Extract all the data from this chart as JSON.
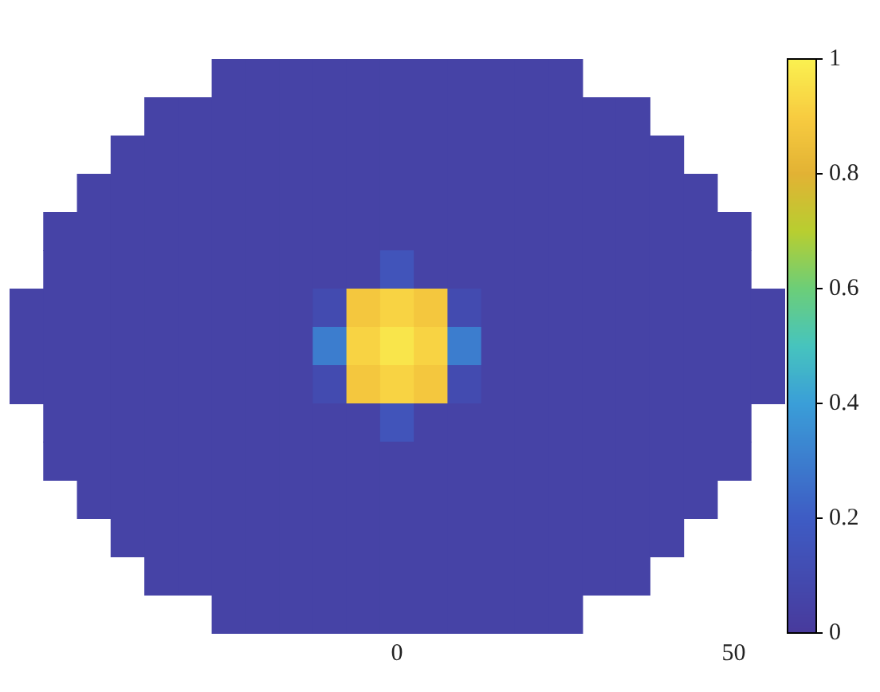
{
  "chart_data": {
    "type": "heatmap",
    "tick_labels": "x",
    "grid": false,
    "categories": [
      null,
      null,
      null,
      null,
      null,
      null,
      null,
      null,
      null,
      null,
      null,
      "0",
      null,
      null,
      null,
      null,
      null,
      null,
      null,
      null,
      null,
      "50",
      null
    ],
    "y_categories": [
      null,
      null,
      null,
      null,
      null,
      null,
      null,
      null,
      null,
      null,
      null,
      null,
      null,
      null,
      null
    ],
    "cells": [
      [
        null,
        null,
        null,
        null,
        null,
        null,
        0.05,
        0.05,
        0.05,
        0.05,
        0.05,
        0.05,
        0.05,
        0.05,
        0.05,
        0.05,
        0.05,
        null,
        null,
        null,
        null,
        null,
        null
      ],
      [
        null,
        null,
        null,
        null,
        0.05,
        0.05,
        0.05,
        0.05,
        0.05,
        0.05,
        0.05,
        0.05,
        0.05,
        0.05,
        0.05,
        0.05,
        0.05,
        0.05,
        0.05,
        null,
        null,
        null,
        null
      ],
      [
        null,
        null,
        null,
        0.05,
        0.05,
        0.05,
        0.05,
        0.05,
        0.05,
        0.05,
        0.05,
        0.05,
        0.05,
        0.05,
        0.05,
        0.05,
        0.05,
        0.05,
        0.05,
        0.05,
        null,
        null,
        null
      ],
      [
        null,
        null,
        0.05,
        0.05,
        0.05,
        0.05,
        0.05,
        0.05,
        0.05,
        0.05,
        0.05,
        0.05,
        0.05,
        0.05,
        0.05,
        0.05,
        0.05,
        0.05,
        0.05,
        0.05,
        0.05,
        null,
        null
      ],
      [
        null,
        0.05,
        0.05,
        0.05,
        0.05,
        0.05,
        0.05,
        0.05,
        0.05,
        0.05,
        0.05,
        0.05,
        0.05,
        0.05,
        0.05,
        0.05,
        0.05,
        0.05,
        0.05,
        0.05,
        0.05,
        0.05,
        null
      ],
      [
        null,
        0.05,
        0.05,
        0.05,
        0.05,
        0.05,
        0.05,
        0.05,
        0.05,
        0.05,
        0.05,
        0.15,
        0.05,
        0.05,
        0.05,
        0.05,
        0.05,
        0.05,
        0.05,
        0.05,
        0.05,
        0.05,
        null
      ],
      [
        0.05,
        0.05,
        0.05,
        0.05,
        0.05,
        0.05,
        0.05,
        0.05,
        0.05,
        0.1,
        0.88,
        0.92,
        0.88,
        0.1,
        0.05,
        0.05,
        0.05,
        0.05,
        0.05,
        0.05,
        0.05,
        0.05,
        0.05
      ],
      [
        0.05,
        0.05,
        0.05,
        0.05,
        0.05,
        0.05,
        0.05,
        0.05,
        0.05,
        0.3,
        0.92,
        0.97,
        0.92,
        0.3,
        0.05,
        0.05,
        0.05,
        0.05,
        0.05,
        0.05,
        0.05,
        0.05,
        0.05
      ],
      [
        0.05,
        0.05,
        0.05,
        0.05,
        0.05,
        0.05,
        0.05,
        0.05,
        0.05,
        0.1,
        0.88,
        0.92,
        0.88,
        0.1,
        0.05,
        0.05,
        0.05,
        0.05,
        0.05,
        0.05,
        0.05,
        0.05,
        0.05
      ],
      [
        null,
        0.05,
        0.05,
        0.05,
        0.05,
        0.05,
        0.05,
        0.05,
        0.05,
        0.05,
        0.05,
        0.15,
        0.05,
        0.05,
        0.05,
        0.05,
        0.05,
        0.05,
        0.05,
        0.05,
        0.05,
        0.05,
        null
      ],
      [
        null,
        0.05,
        0.05,
        0.05,
        0.05,
        0.05,
        0.05,
        0.05,
        0.05,
        0.05,
        0.05,
        0.05,
        0.05,
        0.05,
        0.05,
        0.05,
        0.05,
        0.05,
        0.05,
        0.05,
        0.05,
        0.05,
        null
      ],
      [
        null,
        null,
        0.05,
        0.05,
        0.05,
        0.05,
        0.05,
        0.05,
        0.05,
        0.05,
        0.05,
        0.05,
        0.05,
        0.05,
        0.05,
        0.05,
        0.05,
        0.05,
        0.05,
        0.05,
        0.05,
        null,
        null
      ],
      [
        null,
        null,
        null,
        0.05,
        0.05,
        0.05,
        0.05,
        0.05,
        0.05,
        0.05,
        0.05,
        0.05,
        0.05,
        0.05,
        0.05,
        0.05,
        0.05,
        0.05,
        0.05,
        0.05,
        null,
        null,
        null
      ],
      [
        null,
        null,
        null,
        null,
        0.05,
        0.05,
        0.05,
        0.05,
        0.05,
        0.05,
        0.05,
        0.05,
        0.05,
        0.05,
        0.05,
        0.05,
        0.05,
        0.05,
        0.05,
        null,
        null,
        null,
        null
      ],
      [
        null,
        null,
        null,
        null,
        null,
        null,
        0.05,
        0.05,
        0.05,
        0.05,
        0.05,
        0.05,
        0.05,
        0.05,
        0.05,
        0.05,
        0.05,
        null,
        null,
        null,
        null,
        null,
        null
      ]
    ],
    "clim": [
      0,
      1
    ],
    "cticks": [
      0,
      0.2,
      0.4,
      0.6,
      0.8,
      1
    ]
  }
}
